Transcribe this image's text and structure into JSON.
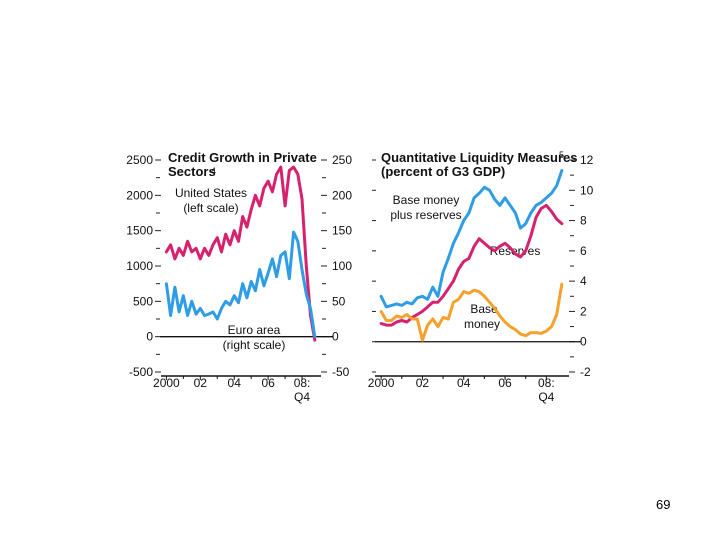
{
  "page_number": "69",
  "colors": {
    "us": "#d6226e",
    "euro": "#2e9de6",
    "base_plus": "#2e9de6",
    "reserves": "#d6226e",
    "base": "#f5a22d"
  },
  "chart_data": [
    {
      "type": "line",
      "title_line1": "Credit Growth in Private",
      "title_line2": "Sectors",
      "footnote": "4",
      "x_tick_labels": [
        "2000",
        "02",
        "04",
        "06",
        "08:",
        "Q4"
      ],
      "x_range": [
        1999.8,
        2009.0
      ],
      "left_axis": {
        "ticks": [
          "2500",
          "2000",
          "1500",
          "1000",
          "500",
          "0",
          "-500"
        ],
        "ylim": [
          -500,
          2500
        ]
      },
      "right_axis": {
        "ticks": [
          "250",
          "200",
          "150",
          "100",
          "50",
          "0",
          "-50"
        ],
        "ylim": [
          -50,
          250
        ]
      },
      "annotations": {
        "us_label_1": "United States",
        "us_label_2": "(left scale)",
        "euro_label_1": "Euro area",
        "euro_label_2": "(right scale)"
      },
      "series": [
        {
          "name": "United States",
          "axis": "left",
          "x": [
            2000.0,
            2000.25,
            2000.5,
            2000.75,
            2001.0,
            2001.25,
            2001.5,
            2001.75,
            2002.0,
            2002.25,
            2002.5,
            2002.75,
            2003.0,
            2003.25,
            2003.5,
            2003.75,
            2004.0,
            2004.25,
            2004.5,
            2004.75,
            2005.0,
            2005.25,
            2005.5,
            2005.75,
            2006.0,
            2006.25,
            2006.5,
            2006.75,
            2007.0,
            2007.25,
            2007.5,
            2007.75,
            2008.0,
            2008.25,
            2008.5,
            2008.75
          ],
          "values": [
            1200,
            1300,
            1100,
            1250,
            1150,
            1350,
            1200,
            1250,
            1100,
            1250,
            1150,
            1300,
            1400,
            1200,
            1450,
            1300,
            1500,
            1350,
            1700,
            1550,
            1800,
            2000,
            1850,
            2100,
            2200,
            2050,
            2300,
            2400,
            1850,
            2350,
            2400,
            2300,
            1950,
            1000,
            300,
            -50
          ]
        },
        {
          "name": "Euro area",
          "axis": "right",
          "x": [
            2000.0,
            2000.25,
            2000.5,
            2000.75,
            2001.0,
            2001.25,
            2001.5,
            2001.75,
            2002.0,
            2002.25,
            2002.5,
            2002.75,
            2003.0,
            2003.25,
            2003.5,
            2003.75,
            2004.0,
            2004.25,
            2004.5,
            2004.75,
            2005.0,
            2005.25,
            2005.5,
            2005.75,
            2006.0,
            2006.25,
            2006.5,
            2006.75,
            2007.0,
            2007.25,
            2007.5,
            2007.75,
            2008.0,
            2008.25,
            2008.5,
            2008.75
          ],
          "values": [
            75,
            30,
            70,
            35,
            58,
            30,
            50,
            32,
            40,
            30,
            32,
            35,
            25,
            40,
            50,
            45,
            58,
            48,
            75,
            55,
            78,
            65,
            95,
            72,
            90,
            110,
            85,
            115,
            120,
            82,
            148,
            135,
            95,
            60,
            40,
            0
          ]
        }
      ]
    },
    {
      "type": "line",
      "title_line1": "Quantitative Liquidity Measures",
      "title_line2": "(percent of G3 GDP)",
      "footnote": "5",
      "x_tick_labels": [
        "2000",
        "02",
        "04",
        "06",
        "08:",
        "Q4"
      ],
      "x_range": [
        1999.8,
        2009.0
      ],
      "right_axis": {
        "ticks": [
          "12",
          "10",
          "8",
          "6",
          "4",
          "2",
          "0",
          "-2"
        ],
        "ylim": [
          -2,
          12
        ]
      },
      "annotations": {
        "base_plus_1": "Base money",
        "base_plus_2": "plus reserves",
        "reserves": "Reserves",
        "base_1": "Base",
        "base_2": "money"
      },
      "series": [
        {
          "name": "Base money plus reserves",
          "x": [
            2000.0,
            2000.25,
            2000.5,
            2000.75,
            2001.0,
            2001.25,
            2001.5,
            2001.75,
            2002.0,
            2002.25,
            2002.5,
            2002.75,
            2003.0,
            2003.25,
            2003.5,
            2003.75,
            2004.0,
            2004.25,
            2004.5,
            2004.75,
            2005.0,
            2005.25,
            2005.5,
            2005.75,
            2006.0,
            2006.25,
            2006.5,
            2006.75,
            2007.0,
            2007.25,
            2007.5,
            2007.75,
            2008.0,
            2008.25,
            2008.5,
            2008.75
          ],
          "values": [
            3.0,
            2.3,
            2.4,
            2.5,
            2.4,
            2.6,
            2.5,
            2.9,
            3.0,
            2.8,
            3.6,
            3.0,
            4.6,
            5.5,
            6.5,
            7.2,
            8.0,
            8.5,
            9.5,
            9.8,
            10.2,
            10.0,
            9.4,
            9.0,
            9.5,
            9.0,
            8.5,
            7.5,
            7.8,
            8.5,
            9.0,
            9.2,
            9.5,
            9.8,
            10.3,
            11.3
          ]
        },
        {
          "name": "Reserves",
          "x": [
            2000.0,
            2000.25,
            2000.5,
            2000.75,
            2001.0,
            2001.25,
            2001.5,
            2001.75,
            2002.0,
            2002.25,
            2002.5,
            2002.75,
            2003.0,
            2003.25,
            2003.5,
            2003.75,
            2004.0,
            2004.25,
            2004.5,
            2004.75,
            2005.0,
            2005.25,
            2005.5,
            2005.75,
            2006.0,
            2006.25,
            2006.5,
            2006.75,
            2007.0,
            2007.25,
            2007.5,
            2007.75,
            2008.0,
            2008.25,
            2008.5,
            2008.75
          ],
          "values": [
            1.2,
            1.1,
            1.1,
            1.3,
            1.4,
            1.3,
            1.6,
            1.8,
            2.0,
            2.3,
            2.6,
            2.6,
            3.0,
            3.5,
            4.0,
            4.8,
            5.3,
            5.5,
            6.3,
            6.8,
            6.5,
            6.2,
            6.0,
            6.3,
            6.5,
            6.2,
            5.8,
            5.6,
            6.0,
            7.0,
            8.2,
            8.8,
            9.0,
            8.6,
            8.1,
            7.8
          ]
        },
        {
          "name": "Base money",
          "x": [
            2000.0,
            2000.25,
            2000.5,
            2000.75,
            2001.0,
            2001.25,
            2001.5,
            2001.75,
            2002.0,
            2002.25,
            2002.5,
            2002.75,
            2003.0,
            2003.25,
            2003.5,
            2003.75,
            2004.0,
            2004.25,
            2004.5,
            2004.75,
            2005.0,
            2005.25,
            2005.5,
            2005.75,
            2006.0,
            2006.25,
            2006.5,
            2006.75,
            2007.0,
            2007.25,
            2007.5,
            2007.75,
            2008.0,
            2008.25,
            2008.5,
            2008.75
          ],
          "values": [
            2.0,
            1.4,
            1.4,
            1.7,
            1.6,
            1.8,
            1.5,
            1.5,
            0.1,
            1.1,
            1.5,
            1.0,
            1.6,
            1.5,
            2.6,
            2.8,
            3.3,
            3.2,
            3.4,
            3.3,
            3.0,
            2.6,
            2.2,
            1.7,
            1.3,
            1.0,
            0.8,
            0.5,
            0.4,
            0.6,
            0.6,
            0.55,
            0.7,
            1.0,
            1.8,
            3.8
          ]
        }
      ]
    }
  ]
}
